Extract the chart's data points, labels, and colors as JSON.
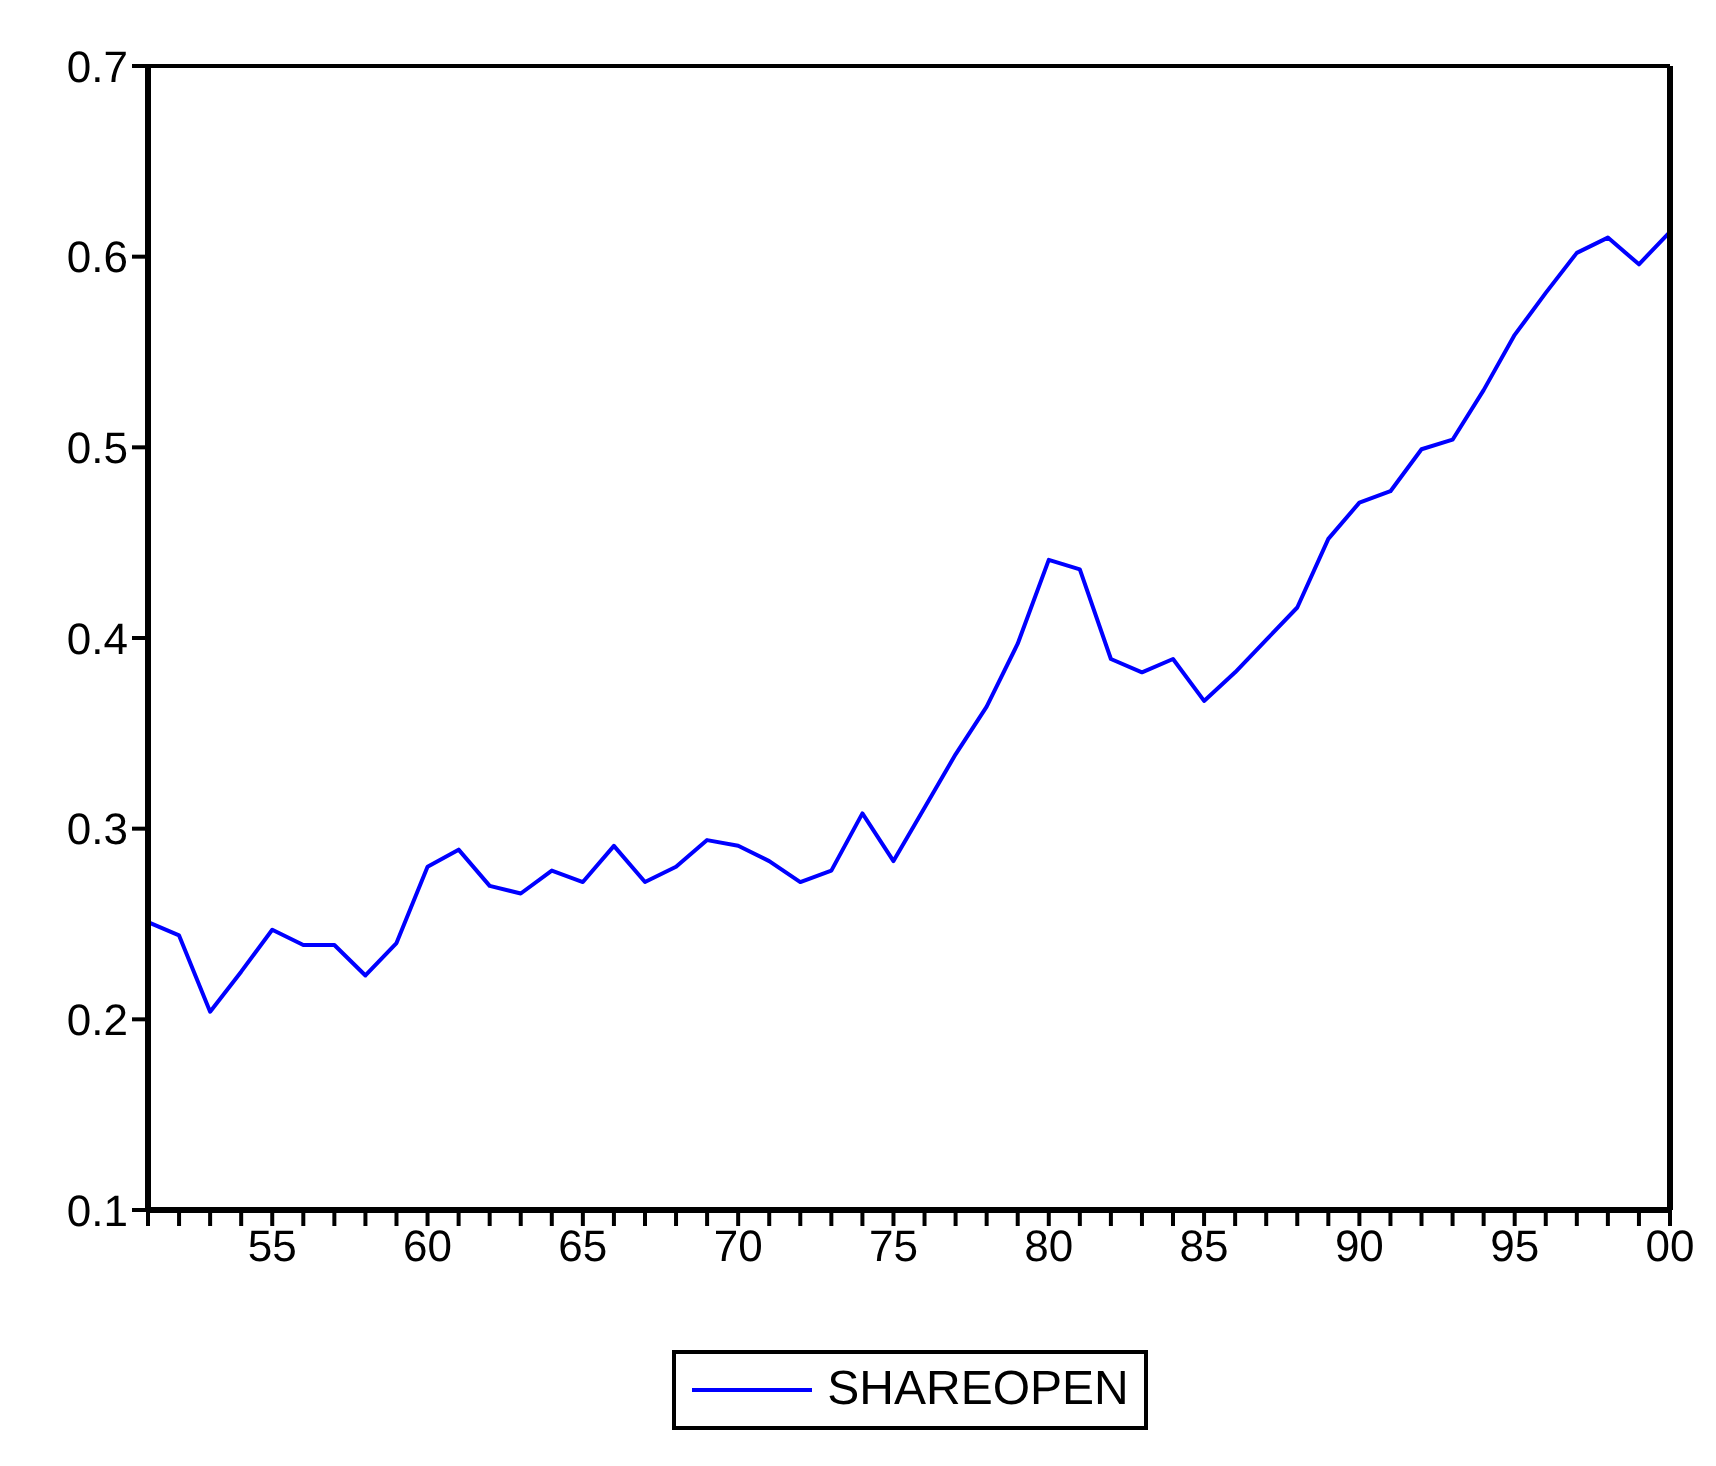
{
  "chart_data": {
    "type": "line",
    "categories": [
      null,
      null,
      null,
      null,
      "55",
      null,
      null,
      null,
      null,
      "60",
      null,
      null,
      null,
      null,
      "65",
      null,
      null,
      null,
      null,
      "70",
      null,
      null,
      null,
      null,
      "75",
      null,
      null,
      null,
      null,
      "80",
      null,
      null,
      null,
      null,
      "85",
      null,
      null,
      null,
      null,
      "90",
      null,
      null,
      null,
      null,
      "95",
      null,
      null,
      null,
      null,
      "00"
    ],
    "series": [
      {
        "name": "SHAREOPEN",
        "color": "#0000ff",
        "values": [
          0.251,
          0.244,
          0.204,
          0.225,
          0.247,
          0.239,
          0.239,
          0.223,
          0.24,
          0.28,
          0.289,
          0.27,
          0.266,
          0.278,
          0.272,
          0.291,
          0.272,
          0.28,
          0.294,
          0.291,
          0.283,
          0.272,
          0.278,
          0.308,
          0.283,
          0.311,
          0.339,
          0.364,
          0.397,
          0.441,
          0.436,
          0.389,
          0.382,
          0.389,
          0.367,
          0.382,
          0.399,
          0.416,
          0.452,
          0.471,
          0.477,
          0.499,
          0.504,
          0.53,
          0.559,
          0.581,
          0.602,
          0.61,
          0.596,
          0.613
        ]
      }
    ],
    "ylim": [
      0.1,
      0.7
    ],
    "yticks": [
      0.1,
      0.2,
      0.3,
      0.4,
      0.5,
      0.6,
      0.7
    ],
    "grid": false,
    "legend": "bottom",
    "marker": "none",
    "line_style": "solid"
  }
}
